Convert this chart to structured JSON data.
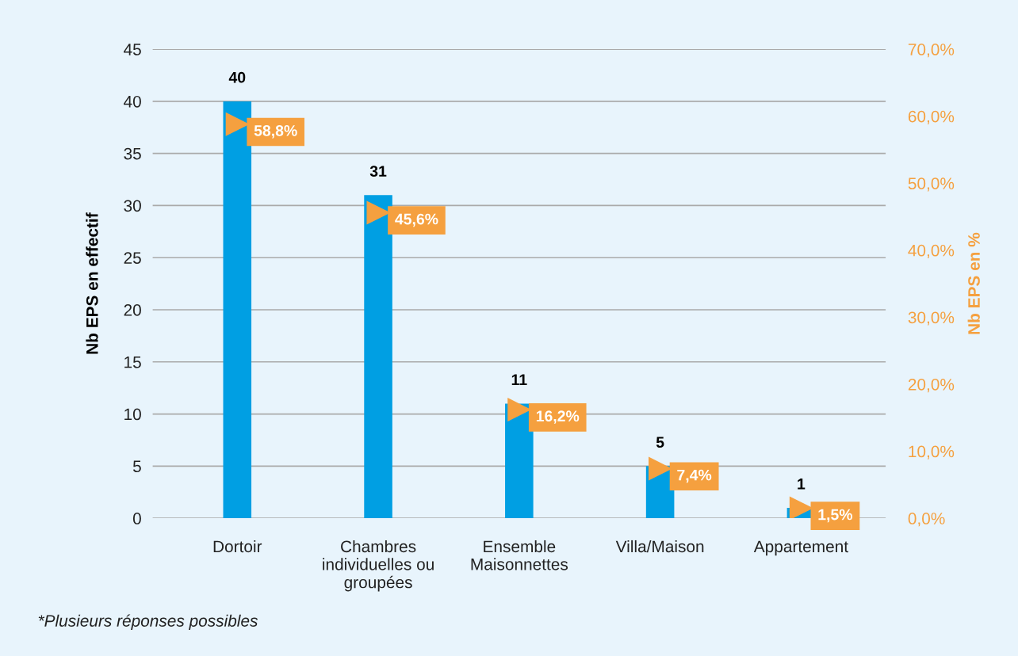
{
  "chart_data": {
    "type": "bar",
    "categories": [
      "Dortoir",
      "Chambres\nindividuelles ou\ngroupées",
      "Ensemble\nMaisonnettes",
      "Villa/Maison",
      "Appartement"
    ],
    "series": [
      {
        "color": "#009fe3",
        "values": [
          40,
          31,
          11,
          5,
          1
        ],
        "value_labels": [
          "40",
          "31",
          "11",
          "5",
          "1"
        ]
      },
      {
        "type": "scatter",
        "axis": "y2",
        "color": "#f5a03f",
        "marker": "triangle",
        "values": [
          58.8,
          45.6,
          16.2,
          7.4,
          1.5
        ],
        "value_labels": [
          "58,8%",
          "45,6%",
          "16,2%",
          "7,4%",
          "1,5%"
        ]
      }
    ],
    "ylabel": "Nb EPS en effectif",
    "y2label": "Nb EPS en %",
    "ylim": [
      0,
      45
    ],
    "yticks": [
      0,
      5,
      10,
      15,
      20,
      25,
      30,
      35,
      40,
      45
    ],
    "y2lim": [
      0,
      70
    ],
    "y2ticks": [
      {
        "value": 0,
        "label": "0,0%"
      },
      {
        "value": 10,
        "label": "10,0%"
      },
      {
        "value": 20,
        "label": "20,0%"
      },
      {
        "value": 30,
        "label": "30,0%"
      },
      {
        "value": 40,
        "label": "40,0%"
      },
      {
        "value": 50,
        "label": "50,0%"
      },
      {
        "value": 60,
        "label": "60,0%"
      },
      {
        "value": 70,
        "label": "70,0%"
      }
    ],
    "grid": "y",
    "legend": false,
    "annotations": [
      "*Plusieurs réponses possibles"
    ]
  }
}
